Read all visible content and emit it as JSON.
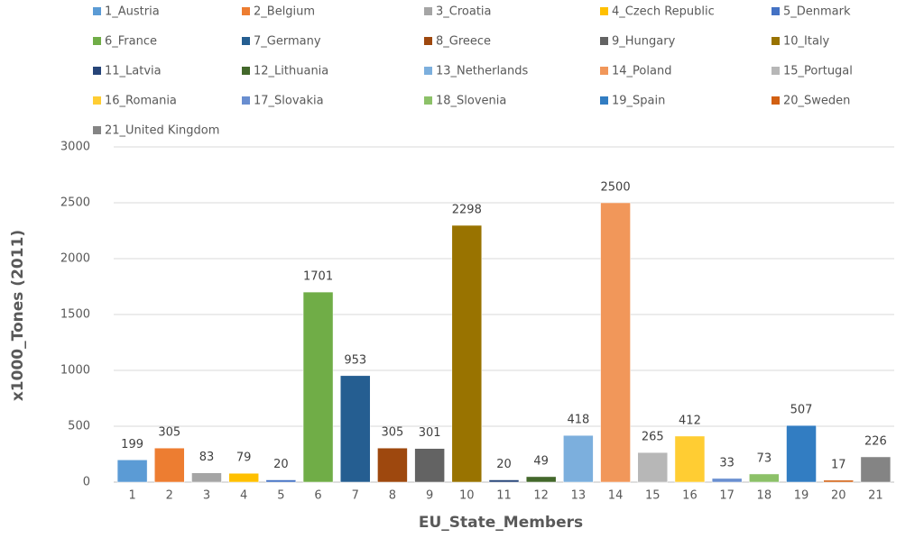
{
  "chart_data": {
    "type": "bar",
    "categories": [
      "1",
      "2",
      "3",
      "4",
      "5",
      "6",
      "7",
      "8",
      "9",
      "10",
      "11",
      "12",
      "13",
      "14",
      "15",
      "16",
      "17",
      "18",
      "19",
      "20",
      "21"
    ],
    "values": [
      199,
      305,
      83,
      79,
      20,
      1701,
      953,
      305,
      301,
      2298,
      20,
      49,
      418,
      2500,
      265,
      412,
      33,
      73,
      507,
      17,
      226
    ],
    "colors": [
      "#5b9bd5",
      "#ed7d31",
      "#a5a5a5",
      "#ffc000",
      "#4472c4",
      "#70ad47",
      "#255e91",
      "#9e480e",
      "#636363",
      "#997300",
      "#264478",
      "#43682b",
      "#7cafdd",
      "#f1975a",
      "#b7b7b7",
      "#ffcd33",
      "#698ed0",
      "#8cc168",
      "#327dc2",
      "#d26012",
      "#848484"
    ],
    "legend": [
      "1_Austria",
      "2_Belgium",
      "3_Croatia",
      "4_Czech Republic",
      "5_Denmark",
      "6_France",
      "7_Germany",
      "8_Greece",
      "9_Hungary",
      "10_Italy",
      "11_Latvia",
      "12_Lithuania",
      "13_Netherlands",
      "14_Poland",
      "15_Portugal",
      "16_Romania",
      "17_Slovakia",
      "18_Slovenia",
      "19_Spain",
      "20_Sweden",
      "21_United Kingdom"
    ],
    "xlabel": "EU_State_Members",
    "ylabel": "x1000_Tones (2011)",
    "ylim": [
      0,
      3000
    ],
    "yticks": [
      0,
      500,
      1000,
      1500,
      2000,
      2500,
      3000
    ],
    "grid": true
  }
}
